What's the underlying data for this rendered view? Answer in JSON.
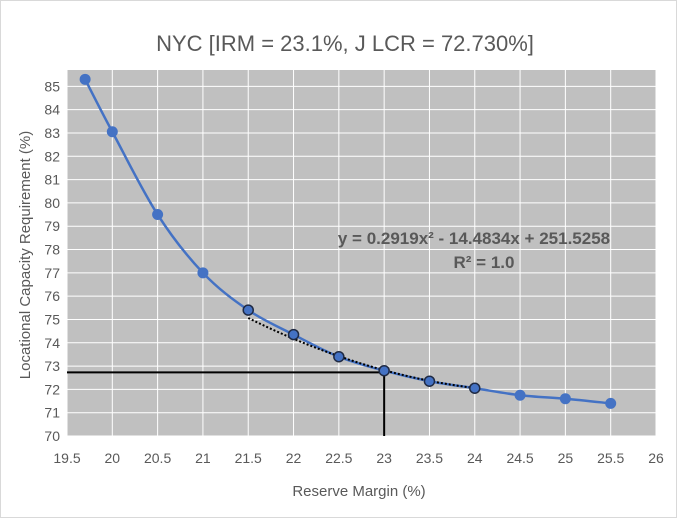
{
  "chart_data": {
    "type": "scatter",
    "title": "NYC [IRM = 23.1%, J LCR = 72.730%]",
    "xlabel": "Reserve Margin (%)",
    "ylabel": "Locational Capacity Requirement (%)",
    "xlim": [
      19.5,
      26
    ],
    "ylim": [
      70,
      85.7
    ],
    "xticks": [
      "19.5",
      "20",
      "20.5",
      "21",
      "21.5",
      "22",
      "22.5",
      "23",
      "23.5",
      "24",
      "24.5",
      "25",
      "25.5",
      "26"
    ],
    "yticks": [
      "70",
      "71",
      "72",
      "73",
      "74",
      "75",
      "76",
      "77",
      "78",
      "79",
      "80",
      "81",
      "82",
      "83",
      "84",
      "85"
    ],
    "grid": true,
    "colors": {
      "series": "#4472c4",
      "marker": "#4472c4",
      "trend": "#000000",
      "plot_bg": "#c0c0c0",
      "gridline": "#ffffff"
    },
    "series": [
      {
        "x": [
          19.7,
          20,
          20.5,
          21,
          21.5,
          22,
          22.5,
          23,
          23.5,
          24,
          24.5,
          25,
          25.5
        ],
        "y": [
          85.3,
          83.05,
          79.5,
          77.0,
          75.4,
          74.35,
          73.4,
          72.8,
          72.35,
          72.05,
          71.75,
          71.6,
          71.4
        ],
        "smooth": true
      }
    ],
    "trendline": {
      "kind": "polynomial",
      "coefficients": [
        0.2919,
        -14.4834,
        251.5258
      ],
      "x_range": [
        21.5,
        24
      ],
      "style": "dotted"
    },
    "annotations": {
      "equation": "y = 0.2919x² - 14.4834x + 251.5258",
      "r_squared": "R² = 1.0"
    },
    "reference": {
      "x": 23.0,
      "y": 72.73
    }
  }
}
